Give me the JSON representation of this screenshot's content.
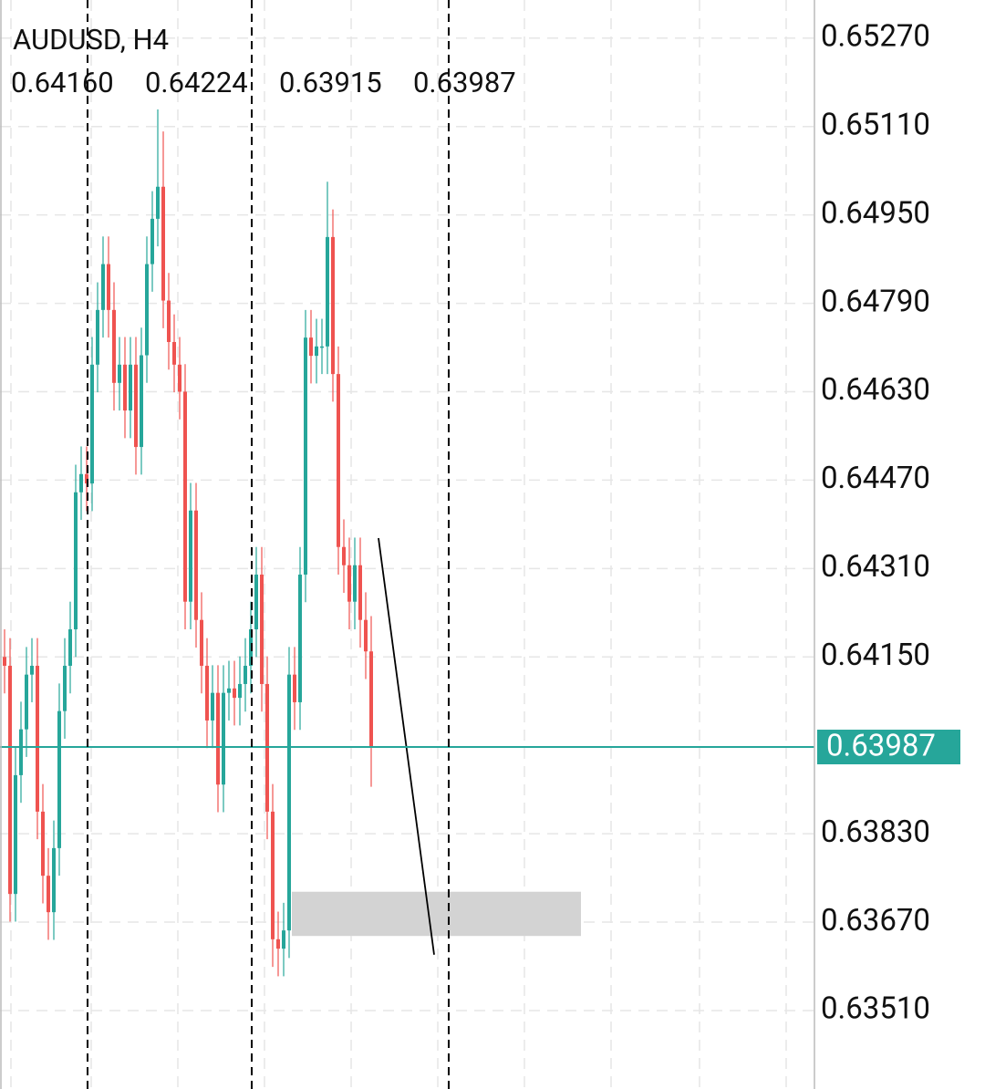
{
  "chart_data": {
    "type": "candlestick",
    "title": "AUDUSD, H4",
    "info_values": [
      {
        "value": 0.6416,
        "label": "0.64160"
      },
      {
        "value": 0.64224,
        "label": "0.64224"
      },
      {
        "value": 0.63915,
        "label": "0.63915"
      },
      {
        "value": 0.63987,
        "label": "0.63987"
      }
    ],
    "candles": [
      [
        0.6415,
        0.642,
        0.64084,
        0.64134
      ],
      [
        0.64134,
        0.64184,
        0.63671,
        0.63721
      ],
      [
        0.63721,
        0.63986,
        0.63671,
        0.63936
      ],
      [
        0.63936,
        0.64069,
        0.63886,
        0.64019
      ],
      [
        0.64019,
        0.64168,
        0.63969,
        0.64118
      ],
      [
        0.64118,
        0.64184,
        0.64068,
        0.64134
      ],
      [
        0.64134,
        0.64184,
        0.6382,
        0.6387
      ],
      [
        0.6387,
        0.6392,
        0.63704,
        0.63754
      ],
      [
        0.63754,
        0.63804,
        0.63638,
        0.63688
      ],
      [
        0.63688,
        0.63854,
        0.63638,
        0.63804
      ],
      [
        0.63804,
        0.64102,
        0.63754,
        0.64052
      ],
      [
        0.64052,
        0.64184,
        0.64002,
        0.64134
      ],
      [
        0.64134,
        0.6425,
        0.64084,
        0.642
      ],
      [
        0.642,
        0.64498,
        0.6415,
        0.64448
      ],
      [
        0.64448,
        0.64531,
        0.64398,
        0.64481
      ],
      [
        0.64481,
        0.64531,
        0.64414,
        0.64464
      ],
      [
        0.64464,
        0.64729,
        0.64414,
        0.64679
      ],
      [
        0.64679,
        0.64828,
        0.64629,
        0.64778
      ],
      [
        0.64778,
        0.64911,
        0.64728,
        0.64861
      ],
      [
        0.64861,
        0.64911,
        0.64728,
        0.64778
      ],
      [
        0.64778,
        0.64828,
        0.64596,
        0.64646
      ],
      [
        0.64646,
        0.64729,
        0.64596,
        0.64679
      ],
      [
        0.64679,
        0.64729,
        0.64546,
        0.64596
      ],
      [
        0.64596,
        0.64729,
        0.64546,
        0.64679
      ],
      [
        0.64679,
        0.64729,
        0.6448,
        0.6453
      ],
      [
        0.6453,
        0.64746,
        0.6448,
        0.64696
      ],
      [
        0.64696,
        0.64911,
        0.64646,
        0.64861
      ],
      [
        0.64861,
        0.64993,
        0.64811,
        0.64943
      ],
      [
        0.64943,
        0.65141,
        0.64893,
        0.65001
      ],
      [
        0.65001,
        0.65101,
        0.64745,
        0.64795
      ],
      [
        0.64795,
        0.64845,
        0.6467,
        0.6472
      ],
      [
        0.6472,
        0.6477,
        0.64629,
        0.64679
      ],
      [
        0.64679,
        0.64729,
        0.6458,
        0.6463
      ],
      [
        0.6463,
        0.6468,
        0.642,
        0.6425
      ],
      [
        0.6425,
        0.64465,
        0.642,
        0.64415
      ],
      [
        0.64415,
        0.64465,
        0.64167,
        0.64217
      ],
      [
        0.64217,
        0.64267,
        0.64084,
        0.64134
      ],
      [
        0.64134,
        0.64184,
        0.63985,
        0.64035
      ],
      [
        0.64035,
        0.64135,
        0.63985,
        0.64085
      ],
      [
        0.64085,
        0.64135,
        0.63869,
        0.63919
      ],
      [
        0.63919,
        0.64135,
        0.63869,
        0.64085
      ],
      [
        0.64085,
        0.64143,
        0.64035,
        0.64093
      ],
      [
        0.64093,
        0.64143,
        0.64026,
        0.64076
      ],
      [
        0.64076,
        0.64151,
        0.64026,
        0.64101
      ],
      [
        0.64101,
        0.64184,
        0.64051,
        0.64134
      ],
      [
        0.64134,
        0.6425,
        0.64084,
        0.642
      ],
      [
        0.642,
        0.64349,
        0.6415,
        0.64299
      ],
      [
        0.64299,
        0.64349,
        0.64051,
        0.64101
      ],
      [
        0.64101,
        0.64151,
        0.6382,
        0.6387
      ],
      [
        0.6387,
        0.6392,
        0.63589,
        0.63639
      ],
      [
        0.63639,
        0.63689,
        0.63572,
        0.63622
      ],
      [
        0.63622,
        0.63705,
        0.63572,
        0.63655
      ],
      [
        0.63655,
        0.64168,
        0.63605,
        0.64118
      ],
      [
        0.64118,
        0.64168,
        0.64018,
        0.64068
      ],
      [
        0.64068,
        0.64349,
        0.64018,
        0.64299
      ],
      [
        0.64299,
        0.64778,
        0.64249,
        0.64728
      ],
      [
        0.64728,
        0.64778,
        0.64645,
        0.64695
      ],
      [
        0.64695,
        0.64762,
        0.64645,
        0.64712
      ],
      [
        0.64712,
        0.64762,
        0.64662,
        0.64712
      ],
      [
        0.64712,
        0.6501,
        0.64662,
        0.6491
      ],
      [
        0.6491,
        0.6496,
        0.64612,
        0.64662
      ],
      [
        0.64662,
        0.64712,
        0.64299,
        0.64349
      ],
      [
        0.64349,
        0.64399,
        0.64266,
        0.64316
      ],
      [
        0.64316,
        0.64366,
        0.642,
        0.6425
      ],
      [
        0.6425,
        0.64366,
        0.642,
        0.64316
      ],
      [
        0.64316,
        0.64366,
        0.64167,
        0.64217
      ],
      [
        0.64217,
        0.64267,
        0.6411,
        0.6416
      ],
      [
        0.6416,
        0.64224,
        0.63915,
        0.63987
      ]
    ],
    "up_color": "#26a69a",
    "down_color": "#ef5350",
    "last_price": 0.63987,
    "last_price_color": "#26a69a",
    "zone": {
      "ylim": [
        0.63645,
        0.63725
      ],
      "color": "#d3d3d3"
    },
    "trendline": {
      "values": [
        0.64365,
        0.63611
      ],
      "color": "#000000"
    },
    "ylim": [
      0.63368,
      0.65339
    ],
    "yticks": [
      {
        "value": 0.6527,
        "label": "0.65270"
      },
      {
        "value": 0.6511,
        "label": "0.65110"
      },
      {
        "value": 0.6495,
        "label": "0.64950"
      },
      {
        "value": 0.6479,
        "label": "0.64790"
      },
      {
        "value": 0.6463,
        "label": "0.64630"
      },
      {
        "value": 0.6447,
        "label": "0.64470"
      },
      {
        "value": 0.6431,
        "label": "0.64310"
      },
      {
        "value": 0.6415,
        "label": "0.64150"
      },
      {
        "value": 0.6383,
        "label": "0.63830"
      },
      {
        "value": 0.6367,
        "label": "0.63670"
      },
      {
        "value": 0.6351,
        "label": "0.63510"
      }
    ],
    "grid": true
  }
}
